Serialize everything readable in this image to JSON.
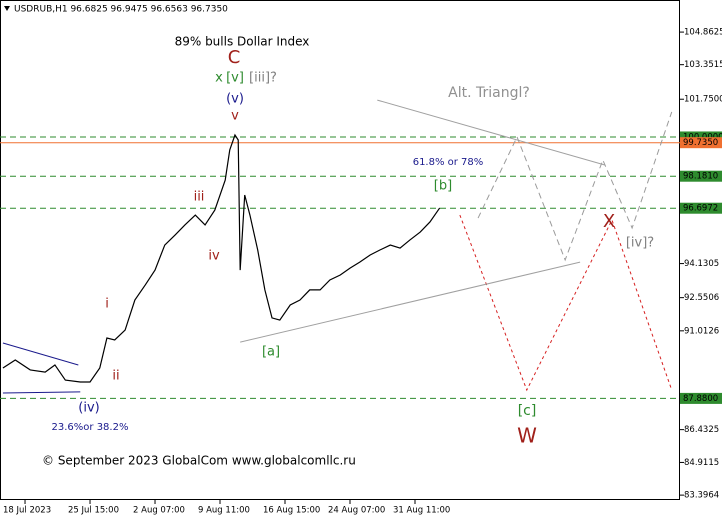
{
  "chart_data": {
    "type": "line",
    "title": "USDRUB,H1  96.6825 96.9475 96.6563 96.7350",
    "xlim": [
      -0.385,
      10.077
    ],
    "ylim": [
      83.17,
      106.35
    ],
    "xticks": [
      {
        "value": 0,
        "label": "18 Jul 2023"
      },
      {
        "value": 1,
        "label": "25 Jul 15:00"
      },
      {
        "value": 2,
        "label": "2 Aug 07:00"
      },
      {
        "value": 3,
        "label": "9 Aug 11:00"
      },
      {
        "value": 4,
        "label": "16 Aug 15:00"
      },
      {
        "value": 5,
        "label": "24 Aug 07:00"
      },
      {
        "value": 6,
        "label": "31 Aug 11:00"
      }
    ],
    "yticks": [
      104.8625,
      103.3515,
      {
        "value": 101.75,
        "label": "101.7500"
      },
      94.1305,
      92.5506,
      91.0126,
      86.4325,
      84.9115,
      83.3964
    ],
    "x": [
      -0.34,
      -0.15,
      0.08,
      0.31,
      0.46,
      0.62,
      0.85,
      1.0,
      1.15,
      1.26,
      1.38,
      1.54,
      1.69,
      1.85,
      2.0,
      2.15,
      2.31,
      2.46,
      2.62,
      2.77,
      2.92,
      3.08,
      3.15,
      3.23,
      3.28,
      3.31,
      3.38,
      3.46,
      3.58,
      3.69,
      3.8,
      3.92,
      4.08,
      4.23,
      4.38,
      4.54,
      4.69,
      4.85,
      5.0,
      5.15,
      5.31,
      5.46,
      5.62,
      5.77,
      5.92,
      6.08,
      6.23,
      6.38
    ],
    "series": [
      {
        "color": "#000000",
        "values": [
          89.29,
          89.66,
          89.2,
          89.1,
          89.43,
          88.73,
          88.64,
          88.64,
          89.29,
          90.68,
          90.59,
          91.05,
          92.44,
          93.14,
          93.83,
          94.99,
          95.46,
          95.92,
          96.38,
          95.92,
          96.61,
          98.0,
          99.4,
          100.09,
          99.86,
          93.83,
          97.31,
          96.38,
          94.76,
          92.91,
          91.61,
          91.51,
          92.21,
          92.44,
          92.91,
          92.91,
          93.37,
          93.6,
          93.92,
          94.2,
          94.53,
          94.76,
          94.99,
          94.85,
          95.22,
          95.59,
          96.06,
          96.71
        ]
      }
    ],
    "levels": [
      {
        "value": 100.0,
        "label": "100.0000",
        "color": "#2e8b2e",
        "style": "dashed"
      },
      {
        "value": 99.735,
        "label": "99.7350",
        "color": "#f07030",
        "style": "solid"
      },
      {
        "value": 98.181,
        "label": "98.1810",
        "color": "#2e8b2e",
        "style": "dashed"
      },
      {
        "value": 96.6972,
        "label": "96.6972",
        "color": "#2e8b2e",
        "style": "dashed"
      },
      {
        "value": 87.88,
        "label": "87.8800",
        "color": "#2e8b2e",
        "style": "dashed"
      }
    ],
    "overlays": [
      {
        "x": [
          6.97,
          7.57,
          8.31,
          8.89,
          9.34,
          9.95
        ],
        "values": [
          96.24,
          100.0,
          94.3,
          98.93,
          95.78,
          101.16
        ],
        "color": "#9a9a9a",
        "style": "dashed"
      },
      {
        "x": [
          6.69,
          7.72,
          9.03,
          9.95
        ],
        "values": [
          96.38,
          88.27,
          96.15,
          88.27
        ],
        "color": "#d62020",
        "style": "dotted"
      },
      {
        "x": [
          5.42,
          8.92
        ],
        "values": [
          101.71,
          98.7
        ],
        "color": "#a0a0a0",
        "style": "solid"
      },
      {
        "x": [
          3.31,
          8.54
        ],
        "values": [
          90.49,
          94.2
        ],
        "color": "#a0a0a0",
        "style": "solid"
      },
      {
        "x": [
          -0.34,
          0.82
        ],
        "values": [
          90.45,
          89.43
        ],
        "color": "#1a1a8c",
        "style": "solid"
      },
      {
        "x": [
          -0.34,
          0.85
        ],
        "values": [
          88.13,
          88.18
        ],
        "color": "#1a1a8c",
        "style": "solid"
      }
    ],
    "annotations": [
      {
        "text": "89% bulls Dollar Index",
        "color": "#000000"
      },
      {
        "text": "C",
        "color": "#a0201a"
      },
      {
        "text": "x",
        "color": "#2e8b2e"
      },
      {
        "text": "[v]",
        "color": "#2e8b2e"
      },
      {
        "text": "[iii]?",
        "color": "#808080"
      },
      {
        "text": "(v)",
        "color": "#1a1a8c"
      },
      {
        "text": "v",
        "color": "#a0201a"
      },
      {
        "text": "iii",
        "color": "#a0201a"
      },
      {
        "text": "iv",
        "color": "#a0201a"
      },
      {
        "text": "i",
        "color": "#a0201a"
      },
      {
        "text": "ii",
        "color": "#a0201a"
      },
      {
        "text": "(iv)",
        "color": "#1a1a8c"
      },
      {
        "text": "23.6%or 38.2%",
        "color": "#1a1a8c"
      },
      {
        "text": "[a]",
        "color": "#2e8b2e"
      },
      {
        "text": "[b]",
        "color": "#2e8b2e"
      },
      {
        "text": "61.8% or 78%",
        "color": "#1a1a8c"
      },
      {
        "text": "Alt. Triangl?",
        "color": "#909090"
      },
      {
        "text": "X",
        "color": "#a0201a"
      },
      {
        "text": "[iv]?",
        "color": "#808080"
      },
      {
        "text": "[c]",
        "color": "#2e8b2e"
      },
      {
        "text": "W",
        "color": "#a0201a"
      },
      {
        "text": "© September 2023 GlobalCom www.globalcomllc.ru",
        "color": "#000000"
      }
    ]
  }
}
